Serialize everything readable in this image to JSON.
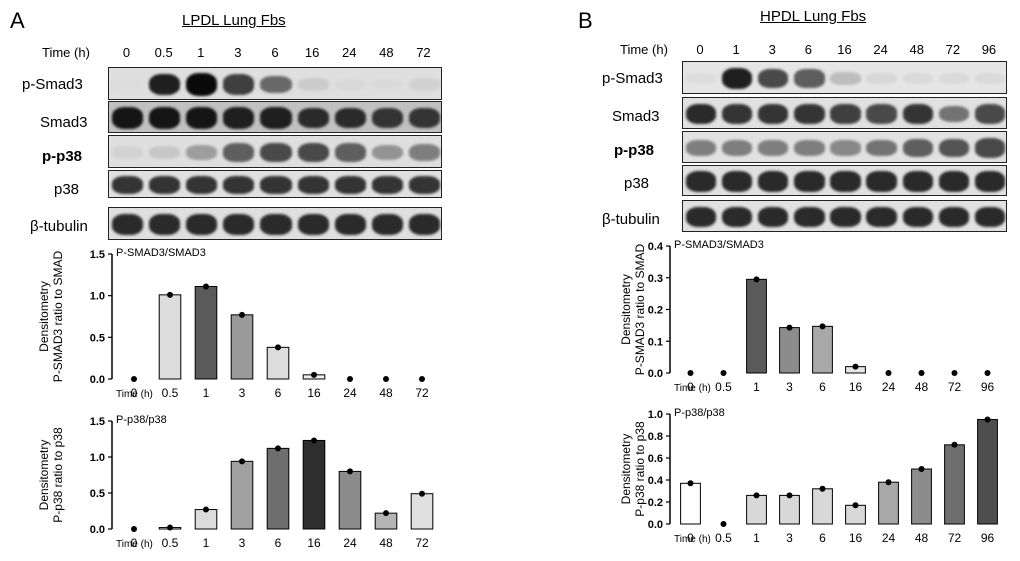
{
  "panels": [
    {
      "letter": "A",
      "title": "LPDL Lung Fbs",
      "time_header": "Time (h)",
      "timepoints": [
        "0",
        "0.5",
        "1",
        "3",
        "6",
        "16",
        "24",
        "48",
        "72"
      ],
      "blots": [
        {
          "label": "p-Smad3",
          "bold": false,
          "intensity": [
            0,
            0.9,
            1,
            0.75,
            0.55,
            0.08,
            0.02,
            0.01,
            0.05
          ],
          "base": 0.1
        },
        {
          "label": "Smad3",
          "bold": false,
          "intensity": [
            0.95,
            0.95,
            0.95,
            0.9,
            0.9,
            0.85,
            0.85,
            0.8,
            0.8
          ],
          "base": 0.35
        },
        {
          "label": "p-p38",
          "bold": true,
          "intensity": [
            0.05,
            0.1,
            0.3,
            0.6,
            0.7,
            0.7,
            0.6,
            0.35,
            0.45
          ],
          "base": 0.1
        },
        {
          "label": "p38",
          "bold": false,
          "intensity": [
            0.8,
            0.8,
            0.8,
            0.8,
            0.8,
            0.8,
            0.8,
            0.8,
            0.8
          ],
          "base": 0.08
        },
        {
          "label": "β-tubulin",
          "bold": false,
          "intensity": [
            0.85,
            0.85,
            0.85,
            0.85,
            0.85,
            0.85,
            0.85,
            0.85,
            0.85
          ],
          "base": 0.1
        }
      ]
    },
    {
      "letter": "B",
      "title": "HPDL Lung Fbs",
      "time_header": "Time (h)",
      "timepoints": [
        "0",
        "1",
        "3",
        "6",
        "16",
        "24",
        "48",
        "72",
        "96"
      ],
      "blots": [
        {
          "label": "p-Smad3",
          "bold": false,
          "intensity": [
            0,
            0.9,
            0.7,
            0.6,
            0.15,
            0.02,
            0.01,
            0.01,
            0.01
          ],
          "base": 0.05
        },
        {
          "label": "Smad3",
          "bold": false,
          "intensity": [
            0.85,
            0.8,
            0.8,
            0.8,
            0.75,
            0.7,
            0.8,
            0.5,
            0.7
          ],
          "base": 0.08
        },
        {
          "label": "p-p38",
          "bold": true,
          "intensity": [
            0.45,
            0.45,
            0.45,
            0.45,
            0.4,
            0.5,
            0.6,
            0.65,
            0.7
          ],
          "base": 0.08
        },
        {
          "label": "p38",
          "bold": false,
          "intensity": [
            0.85,
            0.85,
            0.85,
            0.85,
            0.85,
            0.85,
            0.85,
            0.85,
            0.85
          ],
          "base": 0.08
        },
        {
          "label": "β-tubulin",
          "bold": false,
          "intensity": [
            0.85,
            0.85,
            0.85,
            0.85,
            0.85,
            0.85,
            0.85,
            0.85,
            0.85
          ],
          "base": 0.08
        }
      ]
    }
  ],
  "chart_data": [
    {
      "type": "bar",
      "title": "P-SMAD3/SMAD3",
      "ylabel_line1": "Densitometry",
      "ylabel_line2": "P-SMAD3 ratio to SMAD",
      "xlabel": "Time (h)",
      "categories": [
        "0",
        "0.5",
        "1",
        "3",
        "6",
        "16",
        "24",
        "48",
        "72"
      ],
      "values": [
        0,
        1.01,
        1.11,
        0.77,
        0.38,
        0.05,
        0,
        0,
        0
      ],
      "ylim": [
        0,
        1.5
      ],
      "yticks": [
        "0.0",
        "0.5",
        "1.0",
        "1.5"
      ],
      "yticks_values": [
        0,
        0.5,
        1.0,
        1.5
      ],
      "colors": [
        "#ffffff",
        "#dcdcdc",
        "#5a5a5a",
        "#9a9a9a",
        "#dcdcdc",
        "#f0f0f0",
        "#ffffff",
        "#ffffff",
        "#ffffff"
      ]
    },
    {
      "type": "bar",
      "title": "P-p38/p38",
      "ylabel_line1": "Densitometry",
      "ylabel_line2": "P-p38 ratio to p38",
      "xlabel": "Time (h)",
      "categories": [
        "0",
        "0.5",
        "1",
        "3",
        "6",
        "16",
        "24",
        "48",
        "72"
      ],
      "values": [
        0,
        0.02,
        0.27,
        0.94,
        1.12,
        1.23,
        0.8,
        0.22,
        0.49
      ],
      "ylim": [
        0,
        1.5
      ],
      "yticks": [
        "0.0",
        "0.5",
        "1.0",
        "1.5"
      ],
      "yticks_values": [
        0,
        0.5,
        1.0,
        1.5
      ],
      "colors": [
        "#ffffff",
        "#ffffff",
        "#dcdcdc",
        "#a0a0a0",
        "#6e6e6e",
        "#2e2e2e",
        "#8c8c8c",
        "#b4b4b4",
        "#e0e0e0"
      ]
    },
    {
      "type": "bar",
      "title": "P-SMAD3/SMAD3",
      "ylabel_line1": "Densitometry",
      "ylabel_line2": "P-SMAD3 ratio to SMAD",
      "xlabel": "Time (h)",
      "categories": [
        "0",
        "0.5",
        "1",
        "3",
        "6",
        "16",
        "24",
        "48",
        "72",
        "96"
      ],
      "values": [
        0,
        0,
        0.295,
        0.143,
        0.147,
        0.02,
        0,
        0,
        0,
        0
      ],
      "ylim": [
        0,
        0.4
      ],
      "yticks": [
        "0.0",
        "0.1",
        "0.2",
        "0.3",
        "0.4"
      ],
      "yticks_values": [
        0,
        0.1,
        0.2,
        0.3,
        0.4
      ],
      "colors": [
        "#ffffff",
        "#ffffff",
        "#5a5a5a",
        "#8c8c8c",
        "#a8a8a8",
        "#e6e6e6",
        "#ffffff",
        "#ffffff",
        "#ffffff",
        "#ffffff"
      ]
    },
    {
      "type": "bar",
      "title": "P-p38/p38",
      "ylabel_line1": "Densitometry",
      "ylabel_line2": "P-p38 ratio to p38",
      "xlabel": "Time (h)",
      "categories": [
        "0",
        "0.5",
        "1",
        "3",
        "6",
        "16",
        "24",
        "48",
        "72",
        "96"
      ],
      "values": [
        0.37,
        0,
        0.26,
        0.26,
        0.32,
        0.17,
        0.38,
        0.5,
        0.72,
        0.95
      ],
      "ylim": [
        0,
        1.0
      ],
      "yticks": [
        "0.0",
        "0.2",
        "0.4",
        "0.6",
        "0.8",
        "1.0"
      ],
      "yticks_values": [
        0,
        0.2,
        0.4,
        0.6,
        0.8,
        1.0
      ],
      "colors": [
        "#ffffff",
        "#ffffff",
        "#d8d8d8",
        "#d8d8d8",
        "#d8d8d8",
        "#d8d8d8",
        "#a8a8a8",
        "#8c8c8c",
        "#6e6e6e",
        "#4e4e4e"
      ]
    }
  ]
}
